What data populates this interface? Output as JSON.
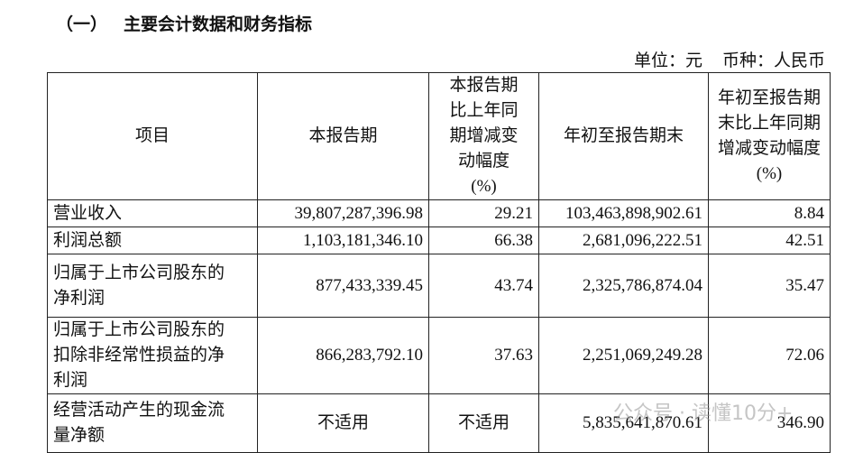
{
  "section": {
    "number": "（一）",
    "title": "主要会计数据和财务指标",
    "unit": [
      "单位：元",
      "币种：人民币"
    ]
  },
  "table": {
    "header": [
      "项目",
      "本报告期",
      "本报告期比上年同期增减变动幅度(%)",
      "年初至报告期末",
      "年初至报告期末比上年同期增减变动幅度(%)"
    ],
    "rows": [
      [
        "营业收入",
        "39,807,287,396.98",
        "29.21",
        "103,463,898,902.61",
        "8.84"
      ],
      [
        "利润总额",
        "1,103,181,346.10",
        "66.38",
        "2,681,096,222.51",
        "42.51"
      ],
      [
        "归属于上市公司股东的净利润",
        "877,433,339.45",
        "43.74",
        "2,325,786,874.04",
        "35.47"
      ],
      [
        "归属于上市公司股东的扣除非经常性损益的净利润",
        "866,283,792.10",
        "37.63",
        "2,251,069,249.28",
        "72.06"
      ],
      [
        "经营活动产生的现金流量净额",
        "不适用",
        "不适用",
        "5,835,641,870.61",
        "346.90"
      ]
    ]
  },
  "watermark": "公众号 · 读懂10分+"
}
